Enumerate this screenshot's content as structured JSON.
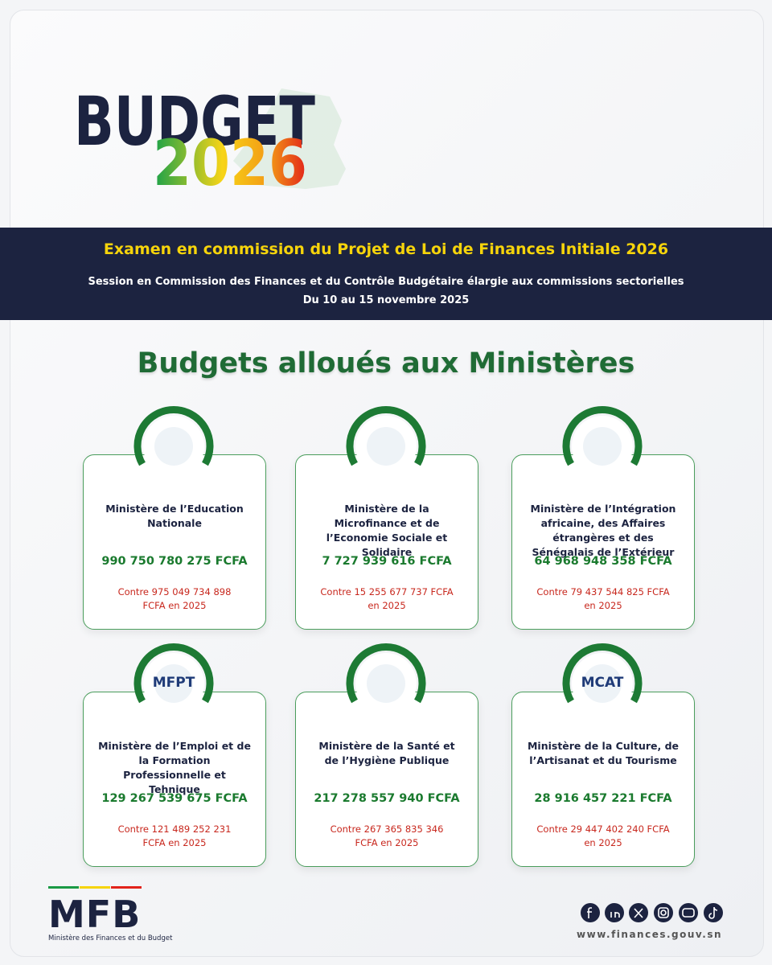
{
  "header": {
    "logo_word": "BUDGET",
    "logo_year": "2026"
  },
  "banner": {
    "title": "Examen en commission du Projet de Loi de Finances Initiale 2026",
    "subtitle": "Session en Commission des Finances et du Contrôle Budgétaire élargie aux commissions sectorielles",
    "dates": "Du 10 au 15 novembre 2025"
  },
  "heading": "Budgets alloués aux Ministères",
  "cards": [
    {
      "name": "Ministère de l’Education Nationale",
      "amount": "990 750 780 275 FCFA",
      "previous": "Contre 975 049 734 898 FCFA en 2025"
    },
    {
      "name": "Ministère de la Microfinance et de l’Economie Sociale et Solidaire",
      "amount": "7 727 939 616 FCFA",
      "previous": "Contre 15 255 677 737 FCFA en 2025"
    },
    {
      "name": "Ministère de l’Intégration africaine, des Affaires étrangères et des Sénégalais de l’Extérieur",
      "amount": "64 968 948 358 FCFA",
      "previous": "Contre 79 437 544 825 FCFA en 2025"
    },
    {
      "name": "Ministère de l’Emploi et de la Formation Professionnelle et Tehnique",
      "amount": "129 267 539 675 FCFA",
      "previous": "Contre 121 489 252 231 FCFA en 2025",
      "logo_text": "MFPT"
    },
    {
      "name": "Ministère de la Santé et de l’Hygiène Publique",
      "amount": "217 278 557 940 FCFA",
      "previous": "Contre 267 365 835 346 FCFA en 2025"
    },
    {
      "name": "Ministère de la Culture, de l’Artisanat et du Tourisme",
      "amount": "28 916 457 221 FCFA",
      "previous": "Contre 29 447 402 240 FCFA en 2025",
      "logo_text": "MCAT"
    }
  ],
  "footer": {
    "logo": "MFB",
    "ministry": "Ministère des Finances et du Budget",
    "website": "www.finances.gouv.sn"
  }
}
